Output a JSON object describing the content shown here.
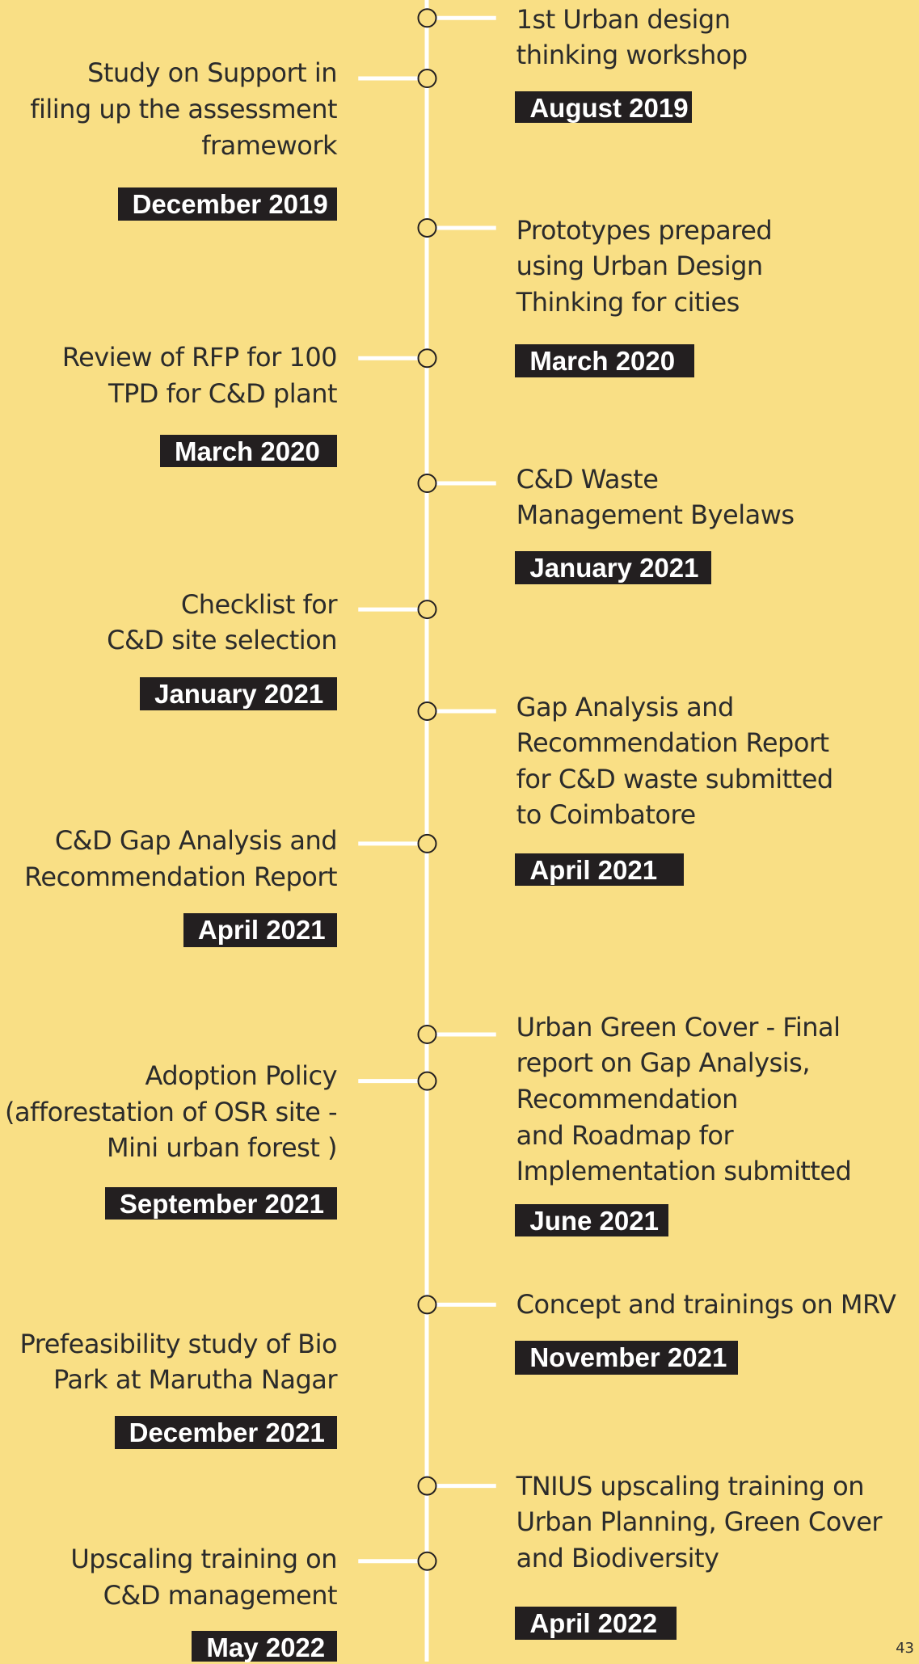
{
  "events": [
    {
      "lines": [
        "1st Urban design",
        "thinking workshop"
      ],
      "date": "August 2019"
    },
    {
      "lines": [
        "Study on Support in",
        "filing up the assessment",
        "framework"
      ],
      "date": "December 2019"
    },
    {
      "lines": [
        "Prototypes prepared",
        "using Urban Design",
        "Thinking for cities"
      ],
      "date": "March 2020"
    },
    {
      "lines": [
        "Review of RFP for 100",
        "TPD for C&D plant"
      ],
      "date": "March 2020"
    },
    {
      "lines": [
        "C&D Waste",
        "Management Byelaws"
      ],
      "date": "January 2021"
    },
    {
      "lines": [
        "Checklist for",
        "C&D site selection"
      ],
      "date": "January 2021"
    },
    {
      "lines": [
        "Gap Analysis and",
        "Recommendation Report",
        "for C&D waste submitted",
        "to Coimbatore"
      ],
      "date": "April 2021"
    },
    {
      "lines": [
        "C&D Gap Analysis and",
        "Recommendation Report"
      ],
      "date": "April 2021"
    },
    {
      "lines": [
        "Urban Green Cover - Final",
        "report on Gap Analysis,",
        "Recommendation",
        "and Roadmap for",
        "Implementation submitted"
      ],
      "date": "June 2021"
    },
    {
      "lines": [
        "Adoption Policy",
        "(afforestation of OSR site -",
        "Mini urban forest )"
      ],
      "date": "September 2021"
    },
    {
      "lines": [
        "Concept and trainings on MRV"
      ],
      "date": "November 2021"
    },
    {
      "lines": [
        "Prefeasibility study of Bio",
        "Park at Marutha Nagar"
      ],
      "date": "December 2021"
    },
    {
      "lines": [
        "TNIUS upscaling training on",
        "Urban Planning, Green Cover",
        "and Biodiversity"
      ],
      "date": "April 2022"
    },
    {
      "lines": [
        "Upscaling training on",
        "C&D management"
      ],
      "date": "May 2022"
    }
  ],
  "page_number": "43"
}
